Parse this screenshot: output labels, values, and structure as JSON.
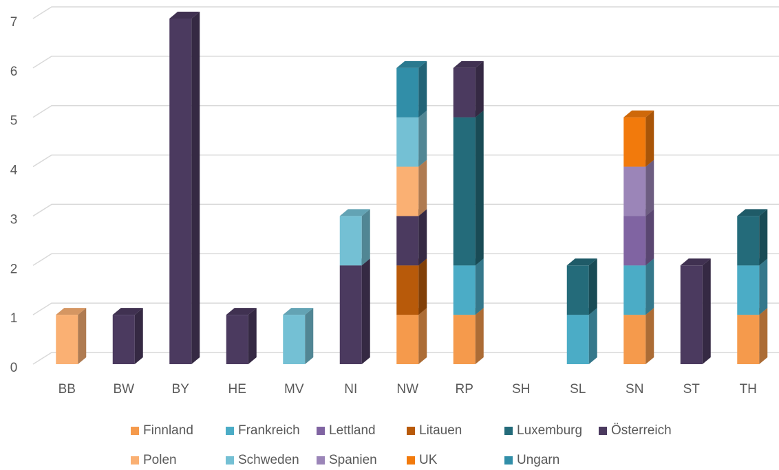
{
  "chart_data": {
    "type": "bar3d_stacked",
    "categories": [
      "BB",
      "BW",
      "BY",
      "HE",
      "MV",
      "NI",
      "NW",
      "RP",
      "SH",
      "SL",
      "SN",
      "ST",
      "TH"
    ],
    "series": [
      {
        "name": "Finnland",
        "color": "#f59a4c",
        "values": [
          0,
          0,
          0,
          0,
          0,
          0,
          1,
          1,
          0,
          0,
          1,
          0,
          1
        ]
      },
      {
        "name": "Frankreich",
        "color": "#4bacc6",
        "values": [
          0,
          0,
          0,
          0,
          0,
          0,
          0,
          1,
          0,
          1,
          1,
          0,
          1
        ]
      },
      {
        "name": "Lettland",
        "color": "#8064a2",
        "values": [
          0,
          0,
          0,
          0,
          0,
          0,
          0,
          0,
          0,
          0,
          1,
          0,
          0
        ]
      },
      {
        "name": "Litauen",
        "color": "#b85a0a",
        "values": [
          0,
          0,
          0,
          0,
          0,
          0,
          1,
          0,
          0,
          0,
          0,
          0,
          0
        ]
      },
      {
        "name": "Luxemburg",
        "color": "#246b7a",
        "values": [
          0,
          0,
          0,
          0,
          0,
          0,
          0,
          3,
          0,
          1,
          0,
          0,
          1
        ]
      },
      {
        "name": "Österreich",
        "color": "#4b3a5f",
        "values": [
          0,
          1,
          7,
          1,
          0,
          2,
          1,
          1,
          0,
          0,
          0,
          2,
          0
        ]
      },
      {
        "name": "Polen",
        "color": "#fab073",
        "values": [
          1,
          0,
          0,
          0,
          0,
          0,
          1,
          0,
          0,
          0,
          0,
          0,
          0
        ]
      },
      {
        "name": "Schweden",
        "color": "#74c0d4",
        "values": [
          0,
          0,
          0,
          0,
          1,
          1,
          1,
          0,
          0,
          0,
          0,
          0,
          0
        ]
      },
      {
        "name": "Spanien",
        "color": "#9b85b8",
        "values": [
          0,
          0,
          0,
          0,
          0,
          0,
          0,
          0,
          0,
          0,
          1,
          0,
          0
        ]
      },
      {
        "name": "UK",
        "color": "#f27a0c",
        "values": [
          0,
          0,
          0,
          0,
          0,
          0,
          0,
          0,
          0,
          0,
          1,
          0,
          0
        ]
      },
      {
        "name": "Ungarn",
        "color": "#318ea8",
        "values": [
          0,
          0,
          0,
          0,
          0,
          0,
          1,
          0,
          0,
          0,
          0,
          0,
          0
        ]
      }
    ],
    "ylim": [
      0,
      7
    ],
    "yticks": [
      0,
      1,
      2,
      3,
      4,
      5,
      6,
      7
    ],
    "grid": true
  }
}
